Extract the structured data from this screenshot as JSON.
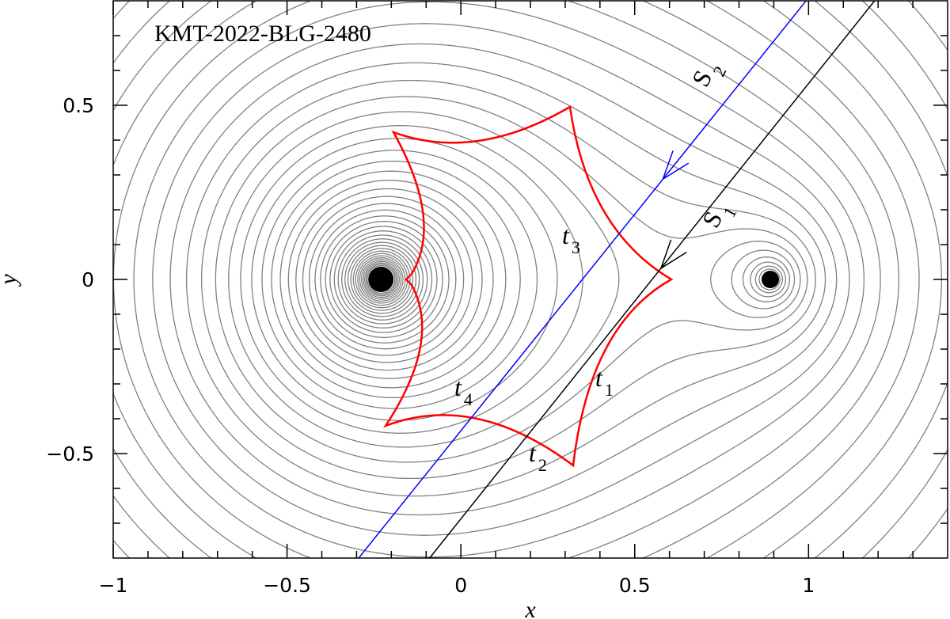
{
  "chart_data": {
    "type": "caustic",
    "title": "KMT-2022-BLG-2480",
    "x_label": "x",
    "y_label": "y",
    "xlim": [
      -1,
      1.4
    ],
    "ylim": [
      -0.8,
      0.8
    ],
    "xticks": [
      {
        "value": -1,
        "label": "−1"
      },
      {
        "value": -0.5,
        "label": "−0.5"
      },
      0,
      0.5,
      1
    ],
    "yticks": [
      {
        "value": -0.5,
        "label": "−0.5"
      },
      0,
      0.5
    ],
    "xminorticks": [
      -0.9,
      -0.8,
      -0.7,
      -0.6,
      -0.4,
      -0.3,
      -0.2,
      -0.1,
      0.1,
      0.2,
      0.3,
      0.4,
      0.6,
      0.7,
      0.8,
      0.9,
      1.1,
      1.2,
      1.3
    ],
    "yminorticks": [
      -0.7,
      -0.6,
      -0.4,
      -0.3,
      -0.2,
      -0.1,
      0.1,
      0.2,
      0.3,
      0.4,
      0.6,
      0.7
    ],
    "lenses": {
      "x": [
        -0.23,
        0.89
      ],
      "y": [
        0,
        0
      ]
    },
    "trajectories": [
      {
        "letter": "S",
        "index": "1",
        "color": "#000000",
        "x": [
          -0.09,
          1.19
        ],
        "y": [
          -0.8,
          0.8
        ]
      },
      {
        "letter": "S",
        "index": "2",
        "color": "#0000ff",
        "x": [
          -0.294,
          0.993
        ],
        "y": [
          -0.8,
          0.8
        ]
      }
    ],
    "times": [
      {
        "letter": "t",
        "index": "1"
      },
      {
        "letter": "t",
        "index": "2"
      },
      {
        "letter": "t",
        "index": "3"
      },
      {
        "letter": "t",
        "index": "4"
      }
    ],
    "caustic_color": "#ff0000",
    "contour_color": "#808080"
  }
}
